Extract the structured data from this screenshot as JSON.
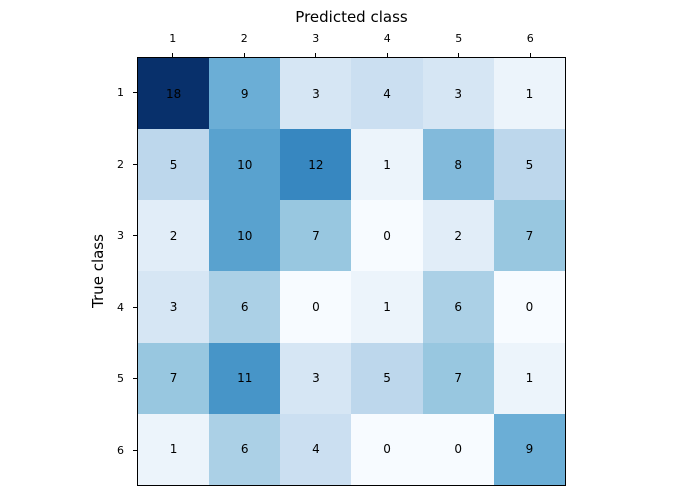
{
  "figure": {
    "background": "#ffffff",
    "spine_color": "#000000",
    "text_color": "#000000"
  },
  "chart_data": {
    "type": "heatmap",
    "title": "",
    "xlabel": "Predicted class",
    "ylabel": "True class",
    "x_tick_labels": [
      "1",
      "2",
      "3",
      "4",
      "5",
      "6"
    ],
    "y_tick_labels": [
      "1",
      "2",
      "3",
      "4",
      "5",
      "6"
    ],
    "matrix": [
      [
        18,
        9,
        3,
        4,
        3,
        1
      ],
      [
        5,
        10,
        12,
        1,
        8,
        5
      ],
      [
        2,
        10,
        7,
        0,
        2,
        7
      ],
      [
        3,
        6,
        0,
        1,
        6,
        0
      ],
      [
        7,
        11,
        3,
        5,
        7,
        1
      ],
      [
        1,
        6,
        4,
        0,
        0,
        9
      ]
    ],
    "vmin": 0,
    "vmax": 18,
    "colormap": "Blues",
    "colormap_anchors": [
      {
        "t": 0.0,
        "color": "#f7fbff"
      },
      {
        "t": 0.125,
        "color": "#deebf7"
      },
      {
        "t": 0.25,
        "color": "#c6dbef"
      },
      {
        "t": 0.375,
        "color": "#9ecae1"
      },
      {
        "t": 0.5,
        "color": "#6baed6"
      },
      {
        "t": 0.625,
        "color": "#4292c6"
      },
      {
        "t": 0.75,
        "color": "#2171b5"
      },
      {
        "t": 0.875,
        "color": "#08519c"
      },
      {
        "t": 1.0,
        "color": "#08306b"
      }
    ],
    "grid": false,
    "legend": "none"
  }
}
